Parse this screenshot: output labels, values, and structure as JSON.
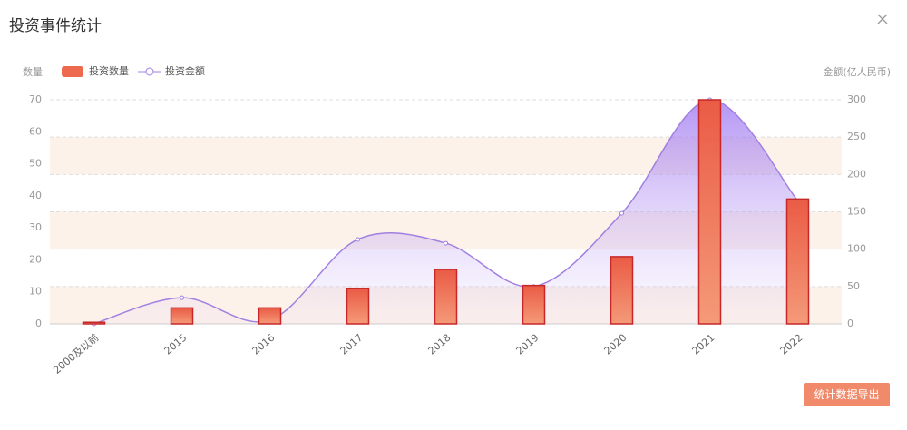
{
  "dialog": {
    "title": "投资事件统计",
    "button": "统计数据导出"
  },
  "chart_data": {
    "type": "bar",
    "categories": [
      "2000及以前",
      "2015",
      "2016",
      "2017",
      "2018",
      "2019",
      "2020",
      "2021",
      "2022"
    ],
    "series": [
      {
        "name": "投资数量",
        "type": "bar",
        "color": "#ee6a4e",
        "values": [
          0.5,
          5,
          5,
          11,
          17,
          12,
          21,
          70,
          39
        ]
      },
      {
        "name": "投资金额",
        "type": "line",
        "axis": "y2",
        "color": "#a17fe0",
        "values": [
          0,
          35,
          5,
          113,
          108,
          50,
          148,
          300,
          165
        ]
      }
    ],
    "y_label": "数量",
    "y2_label": "金额(亿人民币)",
    "ylim": [
      0,
      70
    ],
    "yticks": [
      0,
      10,
      20,
      30,
      40,
      50,
      60,
      70
    ],
    "y2lim": [
      0,
      300
    ],
    "y2ticks": [
      0,
      50,
      100,
      150,
      200,
      250,
      300
    ],
    "grid": true
  }
}
